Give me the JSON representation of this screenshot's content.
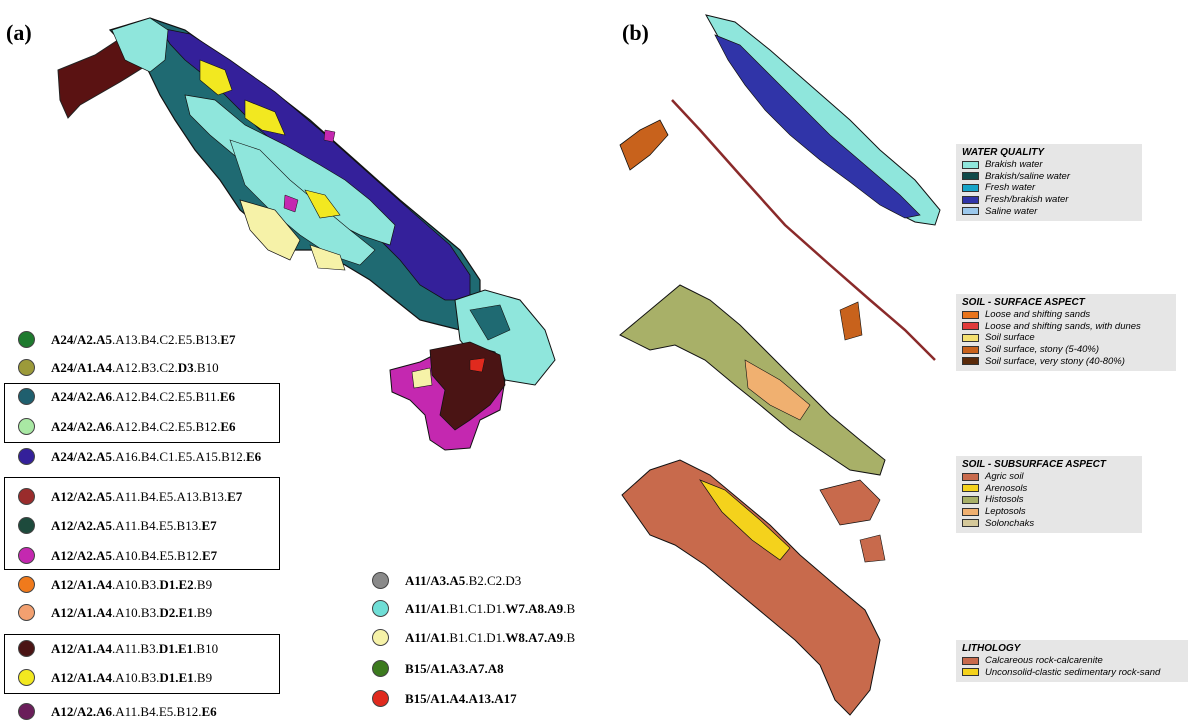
{
  "panel_a_label": "(a)",
  "panel_b_label": "(b)",
  "legend_a": [
    {
      "pre": "A24/A2.A5",
      "mid": ".A13.B4.C2.E5.B13.",
      "post": "E7",
      "color": "#1e7a2e"
    },
    {
      "pre": "A24/A1.A4",
      "mid": ".A12.B3.C2.",
      "post": "D3",
      "tail": ".B10",
      "color": "#9c9a3a"
    },
    {
      "pre": "A24/A2.A6",
      "mid": ".A12.B4.C2.E5.B11.",
      "post": "E6",
      "color": "#1f5f6e"
    },
    {
      "pre": "A24/A2.A6",
      "mid": ".A12.B4.C2.E5.B12.",
      "post": "E6",
      "color": "#a9e8a4"
    },
    {
      "pre": "A24/A2.A5",
      "mid": ".A16.B4.C1.E5.A15.B12.",
      "post": "E6",
      "color": "#34209a"
    },
    {
      "pre": "A12/A2.A5",
      "mid": ".A11.B4.E5.A13.B13.",
      "post": "E7",
      "color": "#9a2c2c"
    },
    {
      "pre": "A12/A2.A5",
      "mid": ".A11.B4.E5.B13.",
      "post": "E7",
      "color": "#1d4a3c"
    },
    {
      "pre": "A12/A2.A5",
      "mid": ".A10.B4.E5.B12.",
      "post": "E7",
      "color": "#c428b0"
    },
    {
      "pre": "A12/A1.A4",
      "mid": ".A10.B3.",
      "post": "D1.E2",
      "tail": ".B9",
      "color": "#f07a1c"
    },
    {
      "pre": "A12/A1.A4",
      "mid": ".A10.B3.",
      "post": "D2.E1",
      "tail": ".B9",
      "color": "#f2a070"
    },
    {
      "pre": "A12/A1.A4",
      "mid": ".A11.B3.",
      "post": "D1.E1",
      "tail": ".B10",
      "color": "#4a1414"
    },
    {
      "pre": "A12/A1.A4",
      "mid": ".A10.B3.",
      "post": "D1.E1",
      "tail": ".B9",
      "color": "#f2e820"
    },
    {
      "pre": "A12/A2.A6",
      "mid": ".A11.B4.E5.B12.",
      "post": "E6",
      "color": "#6a1e5a"
    }
  ],
  "legend_a2": [
    {
      "pre": "A11/A3.A5",
      "mid": ".B2.C2.D3",
      "post": "",
      "color": "#8a8a8a"
    },
    {
      "pre": "A11/A1",
      "mid": ".B1.C1.D1.",
      "post": "W7.A8.A9",
      "tail": ".B",
      "color": "#6fded6"
    },
    {
      "pre": "A11/A1",
      "mid": ".B1.C1.D1.",
      "post": "W8.A7.A9",
      "tail": ".B",
      "color": "#f6f2a8"
    },
    {
      "pre": "B15/A1.A3.A7.A8",
      "mid": "",
      "post": "",
      "color": "#3c7a1e"
    },
    {
      "pre": "B15/A1.A4.A13.A17",
      "mid": "",
      "post": "",
      "color": "#e02a1e"
    }
  ],
  "legend_b": [
    {
      "title": "WATER QUALITY",
      "items": [
        {
          "label": "Brakish water",
          "color": "#8fe6dc"
        },
        {
          "label": "Brakish/saline water",
          "color": "#0f4a4a"
        },
        {
          "label": "Fresh water",
          "color": "#16a4c8"
        },
        {
          "label": "Fresh/brakish water",
          "color": "#3034a8"
        },
        {
          "label": "Saline water",
          "color": "#9cc8ec"
        }
      ]
    },
    {
      "title": "SOIL - SURFACE ASPECT",
      "items": [
        {
          "label": "Loose and shifting sands",
          "color": "#e8741c"
        },
        {
          "label": "Loose and shifting sands, with dunes",
          "color": "#e03a3a"
        },
        {
          "label": "Soil surface",
          "color": "#f4e070"
        },
        {
          "label": "Soil surface, stony (5-40%)",
          "color": "#c8621c"
        },
        {
          "label": "Soil surface, very stony (40-80%)",
          "color": "#5a2a0a"
        }
      ]
    },
    {
      "title": "SOIL - SUBSURFACE ASPECT",
      "items": [
        {
          "label": "Agric soil",
          "color": "#c86a4c"
        },
        {
          "label": "Arenosols",
          "color": "#f4d21c"
        },
        {
          "label": "Histosols",
          "color": "#a8b068"
        },
        {
          "label": "Leptosols",
          "color": "#f0b070"
        },
        {
          "label": "Solonchaks",
          "color": "#d4c89a"
        }
      ]
    },
    {
      "title": "LITHOLOGY",
      "items": [
        {
          "label": "Calcareous rock-calcarenite",
          "color": "#c86a4c"
        },
        {
          "label": "Unconsolid-clastic sedimentary rock-sand",
          "color": "#f4d21c"
        }
      ]
    }
  ]
}
